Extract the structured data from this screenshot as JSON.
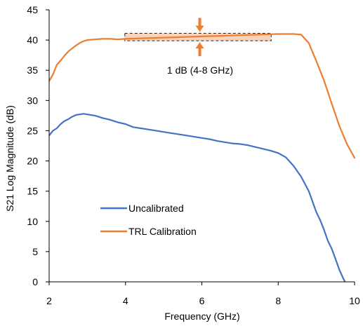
{
  "chart_data": {
    "type": "line",
    "title": "",
    "xlabel": "Frequency (GHz)",
    "ylabel": "S21 Log Magnitude (dB)",
    "xlim": [
      2,
      10
    ],
    "ylim": [
      0,
      45
    ],
    "xticks": [
      2,
      4,
      6,
      8,
      10
    ],
    "yticks": [
      0,
      5,
      10,
      15,
      20,
      25,
      30,
      35,
      40,
      45
    ],
    "grid": false,
    "legend_position": "lower-left",
    "series": [
      {
        "name": "Uncalibrated",
        "color": "#4472C4",
        "x": [
          2.0,
          2.1,
          2.2,
          2.3,
          2.4,
          2.5,
          2.6,
          2.7,
          2.8,
          2.9,
          3.0,
          3.2,
          3.4,
          3.6,
          3.8,
          4.0,
          4.2,
          4.4,
          4.6,
          4.8,
          5.0,
          5.2,
          5.4,
          5.6,
          5.8,
          6.0,
          6.2,
          6.4,
          6.6,
          6.8,
          7.0,
          7.2,
          7.4,
          7.6,
          7.8,
          8.0,
          8.2,
          8.4,
          8.6,
          8.8,
          9.0,
          9.1,
          9.2,
          9.3,
          9.4,
          9.5,
          9.6,
          9.7,
          9.75,
          9.8
        ],
        "values": [
          24.2,
          25.0,
          25.4,
          26.1,
          26.6,
          26.9,
          27.3,
          27.6,
          27.7,
          27.8,
          27.7,
          27.5,
          27.1,
          26.8,
          26.4,
          26.1,
          25.6,
          25.4,
          25.2,
          25.0,
          24.8,
          24.6,
          24.4,
          24.2,
          24.0,
          23.8,
          23.6,
          23.3,
          23.1,
          22.9,
          22.8,
          22.6,
          22.3,
          22.0,
          21.7,
          21.3,
          20.6,
          19.2,
          17.4,
          15.0,
          11.5,
          10.2,
          8.6,
          6.8,
          5.5,
          3.8,
          2.0,
          0.6,
          0.0,
          -0.8
        ]
      },
      {
        "name": "TRL Calibration",
        "color": "#ED7D31",
        "x": [
          2.0,
          2.1,
          2.2,
          2.3,
          2.4,
          2.5,
          2.6,
          2.7,
          2.8,
          2.9,
          3.0,
          3.2,
          3.4,
          3.6,
          3.8,
          4.0,
          4.5,
          5.0,
          5.5,
          6.0,
          6.5,
          7.0,
          7.5,
          8.0,
          8.2,
          8.4,
          8.6,
          8.8,
          9.0,
          9.2,
          9.4,
          9.6,
          9.8,
          10.0
        ],
        "values": [
          33.2,
          34.3,
          35.9,
          36.6,
          37.4,
          38.1,
          38.6,
          39.1,
          39.5,
          39.8,
          40.0,
          40.1,
          40.2,
          40.2,
          40.1,
          40.2,
          40.3,
          40.4,
          40.5,
          40.6,
          40.7,
          40.8,
          40.9,
          41.0,
          41.0,
          41.0,
          40.9,
          39.5,
          36.5,
          33.3,
          29.5,
          25.8,
          22.8,
          20.5
        ]
      }
    ],
    "annotations": [
      {
        "text": "1 dB (4-8 GHz)",
        "x1": 4,
        "x2": 8,
        "y1": 40,
        "y2": 41
      }
    ]
  }
}
